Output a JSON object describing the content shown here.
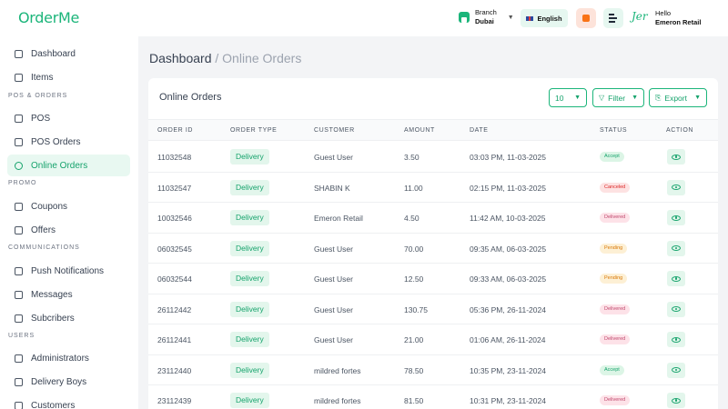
{
  "app": {
    "logo": "OrderMe"
  },
  "topbar": {
    "branch_label": "Branch",
    "branch_value": "Dubai",
    "language": "English",
    "avatar_mark": "Jer",
    "greeting": "Hello",
    "user_name": "Emeron Retail"
  },
  "sidebar": {
    "items_top": [
      {
        "label": "Dashboard",
        "icon": "grid-icon"
      },
      {
        "label": "Items",
        "icon": "box-icon"
      }
    ],
    "section_pos": "POS & ORDERS",
    "items_pos": [
      {
        "label": "POS",
        "icon": "pos-icon"
      },
      {
        "label": "POS Orders",
        "icon": "receipt-icon"
      },
      {
        "label": "Online Orders",
        "icon": "online-orders-icon",
        "active": true
      }
    ],
    "section_promo": "PROMO",
    "items_promo": [
      {
        "label": "Coupons",
        "icon": "coupon-icon"
      },
      {
        "label": "Offers",
        "icon": "offer-icon"
      }
    ],
    "section_comm": "COMMUNICATIONS",
    "items_comm": [
      {
        "label": "Push Notifications",
        "icon": "bell-icon"
      },
      {
        "label": "Messages",
        "icon": "message-icon"
      },
      {
        "label": "Subcribers",
        "icon": "subscriber-icon"
      }
    ],
    "section_users": "USERS",
    "items_users": [
      {
        "label": "Administrators",
        "icon": "admin-icon"
      },
      {
        "label": "Delivery Boys",
        "icon": "delivery-icon"
      },
      {
        "label": "Customers",
        "icon": "customers-icon"
      }
    ]
  },
  "breadcrumb": {
    "root": "Dashboard",
    "sep": "/",
    "current": "Online Orders"
  },
  "card": {
    "title": "Online Orders",
    "page_size": "10",
    "filter_label": "Filter",
    "export_label": "Export"
  },
  "table": {
    "columns": [
      "ORDER ID",
      "ORDER TYPE",
      "CUSTOMER",
      "AMOUNT",
      "DATE",
      "STATUS",
      "ACTION"
    ],
    "rows": [
      {
        "id": "11032548",
        "type": "Delivery",
        "customer": "Guest User",
        "amount": "3.50",
        "date": "03:03 PM, 11-03-2025",
        "status": "Accept"
      },
      {
        "id": "11032547",
        "type": "Delivery",
        "customer": "SHABIN K",
        "amount": "11.00",
        "date": "02:15 PM, 11-03-2025",
        "status": "Canceled"
      },
      {
        "id": "10032546",
        "type": "Delivery",
        "customer": "Emeron Retail",
        "amount": "4.50",
        "date": "11:42 AM, 10-03-2025",
        "status": "Delivered"
      },
      {
        "id": "06032545",
        "type": "Delivery",
        "customer": "Guest User",
        "amount": "70.00",
        "date": "09:35 AM, 06-03-2025",
        "status": "Pending"
      },
      {
        "id": "06032544",
        "type": "Delivery",
        "customer": "Guest User",
        "amount": "12.50",
        "date": "09:33 AM, 06-03-2025",
        "status": "Pending"
      },
      {
        "id": "26112442",
        "type": "Delivery",
        "customer": "Guest User",
        "amount": "130.75",
        "date": "05:36 PM, 26-11-2024",
        "status": "Delivered"
      },
      {
        "id": "26112441",
        "type": "Delivery",
        "customer": "Guest User",
        "amount": "21.00",
        "date": "01:06 AM, 26-11-2024",
        "status": "Delivered"
      },
      {
        "id": "23112440",
        "type": "Delivery",
        "customer": "mildred fortes",
        "amount": "78.50",
        "date": "10:35 PM, 23-11-2024",
        "status": "Accept"
      },
      {
        "id": "23112439",
        "type": "Delivery",
        "customer": "mildred fortes",
        "amount": "81.50",
        "date": "10:31 PM, 23-11-2024",
        "status": "Delivered"
      }
    ]
  },
  "colors": {
    "accent": "#1bb57a",
    "accept": "#16a36c",
    "canceled": "#dc2626",
    "delivered": "#c0466c",
    "pending": "#d97706"
  }
}
